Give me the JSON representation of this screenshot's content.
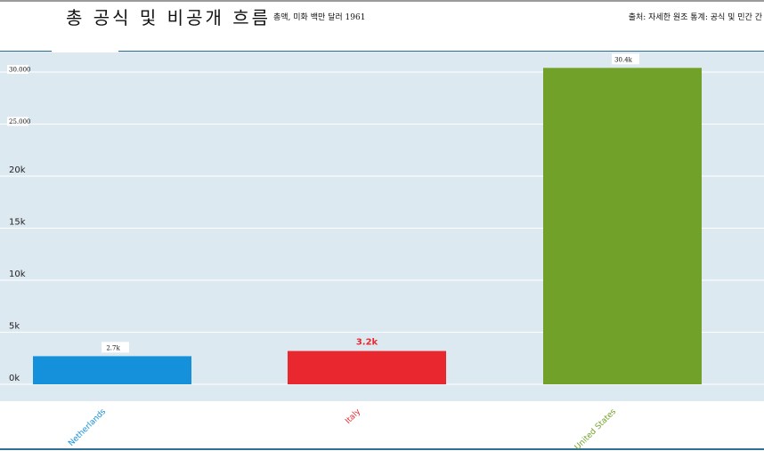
{
  "header": {
    "title": "총 공식 및 비공개 흐름",
    "subtitle": "총액, 미화 백만 달러 1961",
    "source": "출처: 자세한 원조 통계: 공식 및 민간 간"
  },
  "chart_data": {
    "type": "bar",
    "title": "총 공식 및 비공개 흐름",
    "subtitle": "총액, 미화 백만 달러 1961",
    "categories": [
      "Netherlands",
      "Italy",
      "United States"
    ],
    "values": [
      2700,
      3200,
      30400
    ],
    "data_labels": [
      "2.7k",
      "3.2k",
      "30.4k"
    ],
    "colors": [
      "#1591dc",
      "#e8282e",
      "#72a129"
    ],
    "highlight_index": 1,
    "ylim": [
      0,
      30000
    ],
    "yticks": [
      0,
      5000,
      10000,
      15000,
      20000,
      25000,
      30000
    ],
    "ytick_labels": [
      "0k",
      "5k",
      "10k",
      "15k",
      "20k",
      "25.000",
      "30.000"
    ],
    "grid": true,
    "xlabel": "",
    "ylabel": ""
  }
}
